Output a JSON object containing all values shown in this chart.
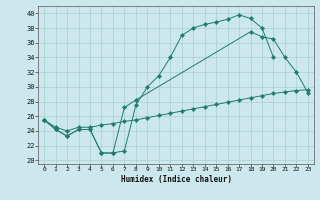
{
  "xlabel": "Humidex (Indice chaleur)",
  "bg_color": "#cce8ec",
  "grid_color": "#aacdd4",
  "line_color": "#1e7b6e",
  "xlim": [
    -0.5,
    23.5
  ],
  "ylim": [
    19.5,
    41.0
  ],
  "xticks": [
    0,
    1,
    2,
    3,
    4,
    5,
    6,
    7,
    8,
    9,
    10,
    11,
    12,
    13,
    14,
    15,
    16,
    17,
    18,
    19,
    20,
    21,
    22,
    23
  ],
  "yticks": [
    20,
    22,
    24,
    26,
    28,
    30,
    32,
    34,
    36,
    38,
    40
  ],
  "curve1_x": [
    0,
    1,
    2,
    3,
    4,
    5,
    6,
    7,
    8,
    9,
    10,
    11,
    12,
    13,
    14,
    15,
    16,
    17,
    18,
    19,
    20
  ],
  "curve1_y": [
    25.5,
    24.2,
    23.3,
    24.2,
    24.2,
    21.0,
    21.0,
    21.3,
    27.5,
    30.0,
    31.5,
    34.0,
    37.0,
    38.0,
    38.5,
    38.8,
    39.2,
    39.8,
    39.3,
    38.0,
    34.0
  ],
  "curve2_x": [
    0,
    1,
    2,
    3,
    4,
    5,
    6,
    7,
    8,
    18,
    19,
    20,
    21,
    22,
    23
  ],
  "curve2_y": [
    25.5,
    24.2,
    23.3,
    24.2,
    24.2,
    21.0,
    21.0,
    27.2,
    28.2,
    37.5,
    36.8,
    36.5,
    34.0,
    32.0,
    29.2
  ],
  "curve3_x": [
    0,
    1,
    2,
    3,
    4,
    5,
    6,
    7,
    8,
    9,
    10,
    11,
    12,
    13,
    14,
    15,
    16,
    17,
    18,
    19,
    20,
    21,
    22,
    23
  ],
  "curve3_y": [
    25.5,
    24.5,
    24.0,
    24.5,
    24.5,
    24.8,
    25.0,
    25.3,
    25.5,
    25.8,
    26.1,
    26.4,
    26.7,
    27.0,
    27.3,
    27.6,
    27.9,
    28.2,
    28.5,
    28.8,
    29.1,
    29.3,
    29.5,
    29.6
  ]
}
